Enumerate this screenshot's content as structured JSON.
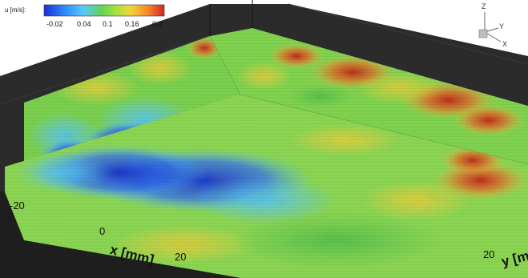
{
  "colorbar": {
    "label": "u [m/s]:",
    "ticks": [
      "-0.02",
      "0.04",
      "0.1",
      "0.16",
      "0.2"
    ],
    "colors": [
      "#1a2fd6",
      "#2f8cff",
      "#59c8ff",
      "#63d35a",
      "#a8e23a",
      "#f2d33b",
      "#f38b2a",
      "#d3241f"
    ]
  },
  "x_axis": {
    "title": "x [mm]",
    "ticks": [
      "-20",
      "0",
      "20"
    ]
  },
  "y_axis": {
    "title": "y [m",
    "ticks": [
      "20"
    ]
  },
  "orientation_icon": {
    "z": "Z",
    "y": "Y",
    "x": "X"
  },
  "colors": {
    "background": "#ffffff",
    "frame": "#2b2b2b",
    "grid_line": "#151515"
  }
}
